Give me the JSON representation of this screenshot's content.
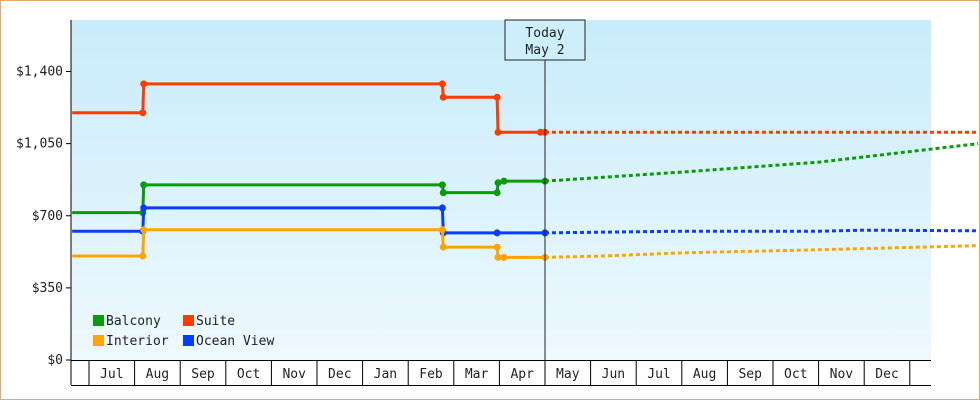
{
  "chart_data": {
    "type": "line",
    "title": "",
    "xlabel": "",
    "ylabel": "",
    "y_ticks": [
      "$0",
      "$350",
      "$700",
      "$1,050",
      "$1,400"
    ],
    "ylim": [
      0,
      1650
    ],
    "x_months": [
      "Jul",
      "Aug",
      "Sep",
      "Oct",
      "Nov",
      "Dec",
      "Jan",
      "Feb",
      "Mar",
      "Apr",
      "May",
      "Jun",
      "Jul",
      "Aug",
      "Sep",
      "Oct",
      "Nov",
      "Dec"
    ],
    "today": {
      "line1": "Today",
      "line2": "May 2",
      "x": 10.0
    },
    "grid": false,
    "legend_position": "bottom-left",
    "colors": {
      "Balcony": "#0a9a0a",
      "Suite": "#ff3c00",
      "Interior": "#ffa500",
      "Ocean View": "#0a3cff",
      "plot_bg_top": "#c8ecfa",
      "plot_bg_bottom": "#eef9fe",
      "frame": "#e5a868"
    },
    "legend_rows": [
      [
        {
          "name": "Balcony"
        },
        {
          "name": "Suite"
        }
      ],
      [
        {
          "name": "Interior"
        },
        {
          "name": "Ocean View"
        }
      ]
    ],
    "series": [
      {
        "name": "Suite",
        "historical": [
          [
            -0.37,
            1200
          ],
          [
            1.18,
            1200
          ],
          [
            1.2,
            1340
          ],
          [
            7.75,
            1340
          ],
          [
            7.77,
            1275
          ],
          [
            8.95,
            1275
          ],
          [
            8.97,
            1105
          ],
          [
            9.9,
            1105
          ],
          [
            10.0,
            1105
          ]
        ],
        "forecast": [
          [
            10.0,
            1105
          ],
          [
            19.5,
            1105
          ]
        ]
      },
      {
        "name": "Balcony",
        "historical": [
          [
            -0.37,
            715
          ],
          [
            1.18,
            715
          ],
          [
            1.2,
            850
          ],
          [
            7.75,
            850
          ],
          [
            7.77,
            812
          ],
          [
            8.95,
            812
          ],
          [
            8.97,
            860
          ],
          [
            9.1,
            868
          ],
          [
            10.0,
            868
          ]
        ],
        "forecast": [
          [
            10.0,
            868
          ],
          [
            13.0,
            912
          ],
          [
            16.0,
            960
          ],
          [
            19.5,
            1050
          ]
        ]
      },
      {
        "name": "Ocean View",
        "historical": [
          [
            -0.37,
            625
          ],
          [
            1.18,
            625
          ],
          [
            1.2,
            738
          ],
          [
            7.75,
            738
          ],
          [
            7.77,
            617
          ],
          [
            8.95,
            617
          ],
          [
            10.0,
            617
          ]
        ],
        "forecast": [
          [
            10.0,
            617
          ],
          [
            13.0,
            625
          ],
          [
            16.0,
            625
          ],
          [
            17.0,
            630
          ],
          [
            19.5,
            627
          ]
        ]
      },
      {
        "name": "Interior",
        "historical": [
          [
            -0.37,
            505
          ],
          [
            1.18,
            505
          ],
          [
            1.2,
            632
          ],
          [
            7.75,
            632
          ],
          [
            7.77,
            548
          ],
          [
            8.95,
            548
          ],
          [
            8.97,
            498
          ],
          [
            9.1,
            498
          ],
          [
            10.0,
            498
          ]
        ],
        "forecast": [
          [
            10.0,
            498
          ],
          [
            11.3,
            505
          ],
          [
            13.0,
            520
          ],
          [
            16.0,
            535
          ],
          [
            19.5,
            555
          ]
        ]
      }
    ]
  }
}
